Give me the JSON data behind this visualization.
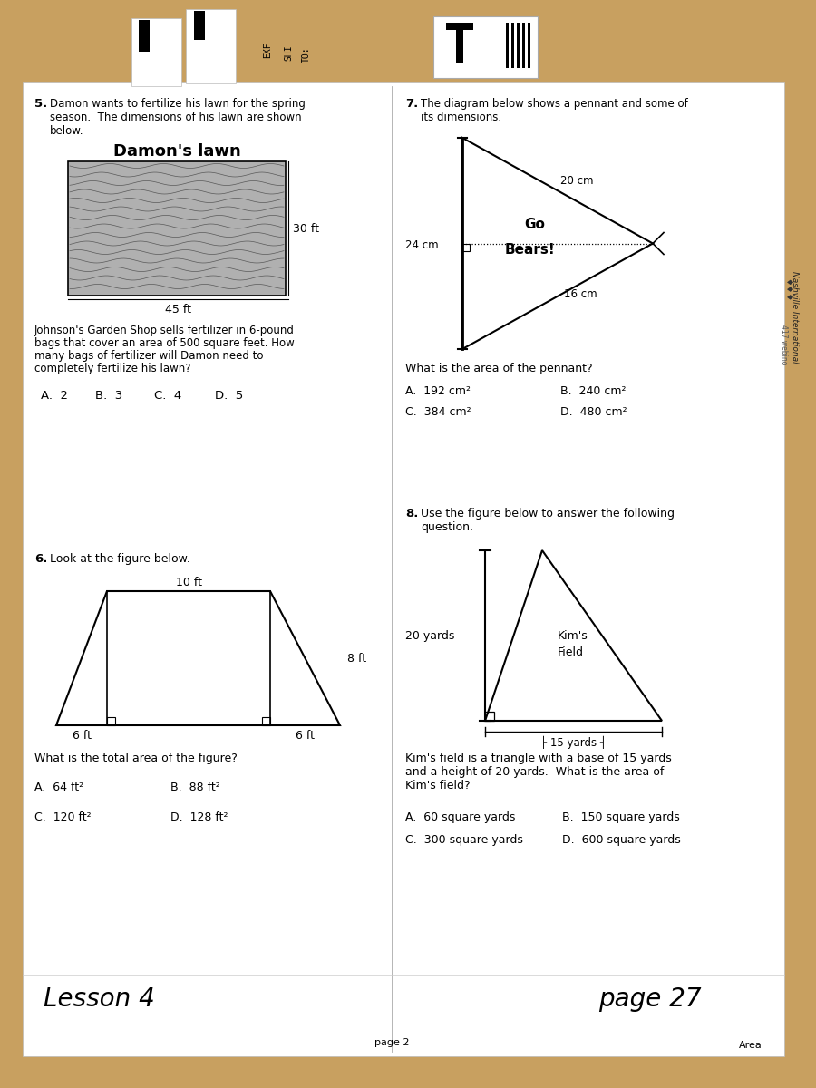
{
  "tan_color": "#c8a060",
  "white": "#ffffff",
  "q5_number": "5.",
  "q5_text1": "Damon wants to fertilize his lawn for the spring",
  "q5_text2": "season.  The dimensions of his lawn are shown",
  "q5_text3": "below.",
  "q5_title": "Damon's lawn",
  "q5_dim1": "30 ft",
  "q5_dim2": "45 ft",
  "q5_fertilizer_text": [
    "Johnson's Garden Shop sells fertilizer in 6-pound",
    "bags that cover an area of 500 square feet. How",
    "many bags of fertilizer will Damon need to",
    "completely fertilize his lawn?"
  ],
  "q5_answers": [
    "A.  2",
    "B.  3",
    "C.  4",
    "D.  5"
  ],
  "q7_number": "7.",
  "q7_text1": "The diagram below shows a pennant and some of",
  "q7_text2": "its dimensions.",
  "q7_dim1": "20 cm",
  "q7_dim2": "24 cm",
  "q7_dim3": "16 cm",
  "q7_pennant_text1": "Go",
  "q7_pennant_text2": "Bears!",
  "q7_question": "What is the area of the pennant?",
  "q7_answers": [
    "A.  192 cm²",
    "B.  240 cm²",
    "C.  384 cm²",
    "D.  480 cm²"
  ],
  "q6_number": "6.",
  "q6_text1": "Look at the figure below.",
  "q6_dim_top": "10 ft",
  "q6_dim_right": "8 ft",
  "q6_dim_bot_left": "6 ft",
  "q6_dim_bot_right": "6 ft",
  "q6_question": "What is the total area of the figure?",
  "q6_answers": [
    "A.  64 ft²",
    "B.  88 ft²",
    "C.  120 ft²",
    "D.  128 ft²"
  ],
  "q8_number": "8.",
  "q8_text1": "Use the figure below to answer the following",
  "q8_text2": "question.",
  "q8_dim_left": "20 yards",
  "q8_label1": "Kim's",
  "q8_label2": "Field",
  "q8_question1": "Kim's field is a triangle with a base of 15 yards",
  "q8_question2": "and a height of 20 yards.  What is the area of",
  "q8_question3": "Kim's field?",
  "q8_answers": [
    "A.  60 square yards",
    "B.  150 square yards",
    "C.  300 square yards",
    "D.  600 square yards"
  ],
  "lesson_label": "Lesson 4",
  "page_label": "page 27",
  "page2_label": "page 2",
  "area_label": "Area"
}
